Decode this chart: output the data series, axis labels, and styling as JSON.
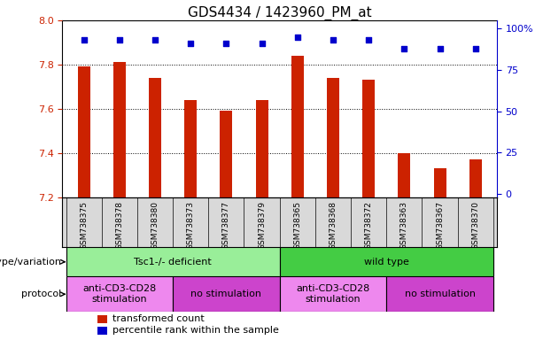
{
  "title": "GDS4434 / 1423960_PM_at",
  "samples": [
    "GSM738375",
    "GSM738378",
    "GSM738380",
    "GSM738373",
    "GSM738377",
    "GSM738379",
    "GSM738365",
    "GSM738368",
    "GSM738372",
    "GSM738363",
    "GSM738367",
    "GSM738370"
  ],
  "bar_values": [
    7.79,
    7.81,
    7.74,
    7.64,
    7.59,
    7.64,
    7.84,
    7.74,
    7.73,
    7.4,
    7.33,
    7.37
  ],
  "percentile_values": [
    93,
    93,
    93,
    91,
    91,
    91,
    95,
    93,
    93,
    88,
    88,
    88
  ],
  "y_min": 7.2,
  "y_max": 8.0,
  "y_ticks": [
    7.2,
    7.4,
    7.6,
    7.8,
    8.0
  ],
  "y2_ticks": [
    0,
    25,
    50,
    75,
    100
  ],
  "bar_color": "#cc2200",
  "percentile_color": "#0000cc",
  "grid_color": "#000000",
  "tick_bg_color": "#d9d9d9",
  "groups": [
    {
      "label": "Tsc1-/- deficient",
      "start": 0,
      "end": 6,
      "color": "#99ee99"
    },
    {
      "label": "wild type",
      "start": 6,
      "end": 12,
      "color": "#44cc44"
    }
  ],
  "protocols": [
    {
      "label": "anti-CD3-CD28\nstimulation",
      "start": 0,
      "end": 3,
      "color": "#ee88ee"
    },
    {
      "label": "no stimulation",
      "start": 3,
      "end": 6,
      "color": "#cc44cc"
    },
    {
      "label": "anti-CD3-CD28\nstimulation",
      "start": 6,
      "end": 9,
      "color": "#ee88ee"
    },
    {
      "label": "no stimulation",
      "start": 9,
      "end": 12,
      "color": "#cc44cc"
    }
  ],
  "genotype_label": "genotype/variation",
  "protocol_label": "protocol",
  "legend_bar": "transformed count",
  "legend_pct": "percentile rank within the sample",
  "bar_tick_color": "#cc2200",
  "y2label_color": "#0000cc",
  "title_fontsize": 11,
  "tick_fontsize": 8,
  "label_fontsize": 8
}
